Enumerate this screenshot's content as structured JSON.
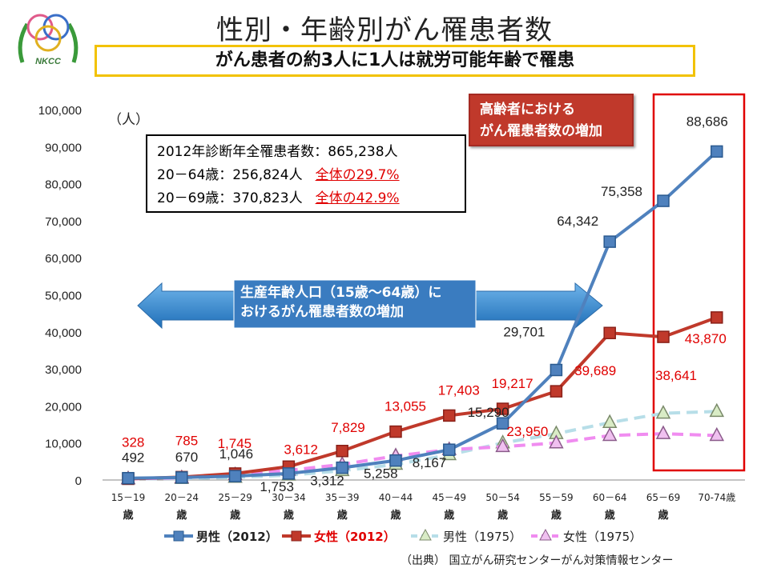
{
  "title": "性別・年齢別がん罹患者数",
  "subtitle": "がん患者の約3人に1人は就労可能年齢で罹患",
  "logo_text": "NKCC",
  "info_box": {
    "line1": "2012年診断年全罹患者数：865,238人",
    "line2_label": "20－64歳：256,824人",
    "line2_share": "全体の29.7%",
    "line3_label": "20－69歳：370,823人",
    "line3_share": "全体の42.9%"
  },
  "elderly_box": {
    "line1": "高齢者における",
    "line2": "がん罹患者数の増加"
  },
  "arrow_text": {
    "line1": "生産年齢人口（15歳～64歳）に",
    "line2": "おけるがん罹患者数の増加"
  },
  "source": "（出典） 国立がん研究センターがん対策情報センター",
  "colors": {
    "male2012": "#4f81bd",
    "female2012": "#c0392b",
    "male1975": "#b7dee8",
    "female1975": "#f08cf0",
    "highlight": "#e00000",
    "arrow": "#3a86c8",
    "label_red": "#e00000"
  },
  "chart_data": {
    "type": "line",
    "yunit": "（人）",
    "ylim": [
      0,
      100000
    ],
    "yticks": [
      "0",
      "10,000",
      "20,000",
      "30,000",
      "40,000",
      "50,000",
      "60,000",
      "70,000",
      "80,000",
      "90,000",
      "100,000"
    ],
    "categories": [
      [
        "15－19",
        "歳"
      ],
      [
        "20－24",
        "歳"
      ],
      [
        "25－29",
        "歳"
      ],
      [
        "30－34",
        "歳"
      ],
      [
        "35－39",
        "歳"
      ],
      [
        "40－44",
        "歳"
      ],
      [
        "45－49",
        "歳"
      ],
      [
        "50－54",
        "歳"
      ],
      [
        "55－59",
        "歳"
      ],
      [
        "60－64",
        "歳"
      ],
      [
        "65－69",
        "歳"
      ],
      [
        "70-74歳",
        ""
      ]
    ],
    "series": [
      {
        "name": "男性（2012）",
        "key": "male2012",
        "values": [
          492,
          670,
          1046,
          1753,
          3312,
          5258,
          8167,
          15290,
          29701,
          64342,
          75358,
          88686
        ],
        "labels": [
          "492",
          "670",
          "1,046",
          "1,753",
          "3,312",
          "5,258",
          "8,167",
          "15,290",
          "29,701",
          "64,342",
          "75,358",
          "88,686"
        ]
      },
      {
        "name": "女性（2012）",
        "key": "female2012",
        "values": [
          328,
          785,
          1745,
          3612,
          7829,
          13055,
          17403,
          19217,
          23950,
          39689,
          38641,
          43870
        ],
        "labels": [
          "328",
          "785",
          "1,745",
          "3,612",
          "7,829",
          "13,055",
          "17,403",
          "19,217",
          "23,950",
          "39,689",
          "38,641",
          "43,870"
        ]
      },
      {
        "name": "男性（1975）",
        "key": "male1975",
        "values": [
          300,
          400,
          700,
          1300,
          2500,
          4200,
          6800,
          10000,
          12500,
          15500,
          18000,
          18500
        ]
      },
      {
        "name": "女性（1975）",
        "key": "female1975",
        "values": [
          300,
          600,
          1400,
          2600,
          4200,
          6500,
          8200,
          9000,
          10000,
          12000,
          12500,
          12000
        ]
      }
    ]
  }
}
